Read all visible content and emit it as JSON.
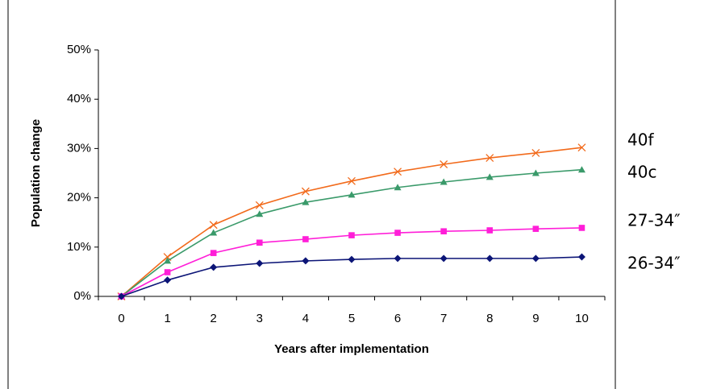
{
  "chart_data": {
    "type": "line",
    "x_label": "Years after implementation",
    "y_label": "Population change",
    "categories": [
      "0",
      "1",
      "2",
      "3",
      "4",
      "5",
      "6",
      "7",
      "8",
      "9",
      "10"
    ],
    "ylim": [
      0,
      50
    ],
    "yticks": [
      {
        "value": 0,
        "label": "0%"
      },
      {
        "value": 10,
        "label": "10%"
      },
      {
        "value": 20,
        "label": "20%"
      },
      {
        "value": 30,
        "label": "30%"
      },
      {
        "value": 40,
        "label": "40%"
      },
      {
        "value": 50,
        "label": "50%"
      }
    ],
    "grid": false,
    "series": [
      {
        "name": "40f",
        "color": "#f26a1b",
        "marker": "x",
        "values": [
          0,
          8,
          14.5,
          18.5,
          21.3,
          23.4,
          25.3,
          26.8,
          28.1,
          29.1,
          30.2
        ]
      },
      {
        "name": "40c",
        "color": "#3a9a6a",
        "marker": "triangle",
        "values": [
          0,
          7.2,
          12.9,
          16.7,
          19.1,
          20.6,
          22.1,
          23.2,
          24.2,
          25,
          25.7
        ]
      },
      {
        "name": "27-34″",
        "color": "#ff1ed8",
        "marker": "square",
        "values": [
          0,
          4.9,
          8.8,
          10.9,
          11.6,
          12.4,
          12.9,
          13.2,
          13.4,
          13.7,
          13.9
        ]
      },
      {
        "name": "26-34″",
        "color": "#0c1577",
        "marker": "diamond",
        "values": [
          0,
          3.3,
          5.9,
          6.7,
          7.2,
          7.5,
          7.7,
          7.7,
          7.7,
          7.7,
          8.0
        ]
      }
    ]
  }
}
